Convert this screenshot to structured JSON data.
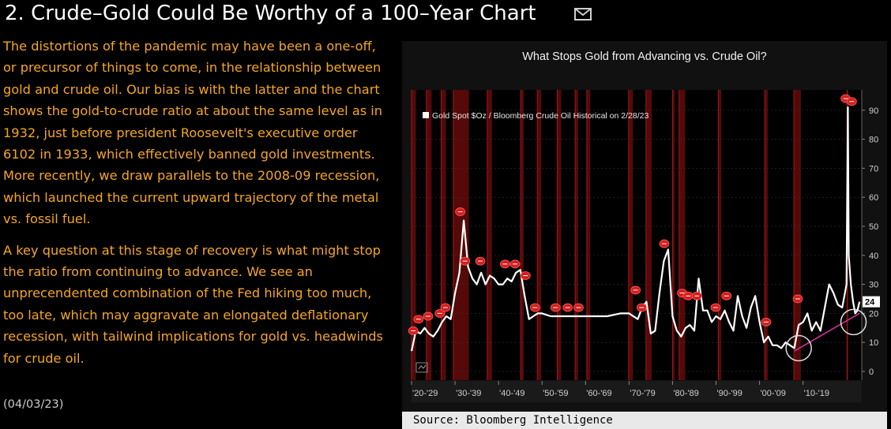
{
  "header": {
    "title": "2. Crude–Gold Could Be Worthy of a 100–Year Chart",
    "mail_icon": "envelope-icon"
  },
  "body": {
    "paragraph1": "The distortions of the pandemic may have been a one-off, or precursor of things to come, in the relationship between gold and crude oil. Our bias is with the latter and the chart shows the gold-to-crude ratio at about the same level as in 1932, just before president Roosevelt's executive order 6102 in 1933, which effectively banned gold investments. More recently, we draw parallels to the 2008-09 recession, which launched the current upward trajectory of the metal vs. fossil fuel.",
    "paragraph2": "A key question at this stage of recovery is what might stop the ratio from continuing to advance. We see an unprecendented combination of the Fed hiking too much, too late, which may aggravate an elongated deflationary recession, with tailwind implications for gold vs. headwinds for crude oil.",
    "date": "(04/03/23)"
  },
  "source": "Source: Bloomberg Intelligence",
  "colors": {
    "text_accent": "#f5a623",
    "recession_band": "#5a0a0a",
    "line": "#ffffff",
    "trend": "#d0309a",
    "marker": "#d51d1d"
  },
  "chart_data": {
    "type": "line",
    "title": "What Stops Gold from Advancing vs. Crude Oil?",
    "legend": "Gold Spot $Oz / Bloomberg Crude Oil Historical on 2/28/23",
    "legend_position": "top-left",
    "x_tick_labels": [
      "'20-'29",
      "'30-'39",
      "'40-'49",
      "'50-'59",
      "'60-'69",
      "'70-'79",
      "'80-'89",
      "'90-'99",
      "'00-'09",
      "'10-'19"
    ],
    "y_ticks": [
      0,
      10,
      20,
      30,
      40,
      50,
      60,
      70,
      80,
      90
    ],
    "ylim": [
      -3,
      97
    ],
    "xlim": [
      1920,
      2023.5
    ],
    "last_value_label": "24",
    "series": [
      {
        "name": "Gold Spot $Oz / Bloomberg Crude Oil Historical on 2/28/23",
        "x": [
          1920,
          1921,
          1922,
          1923,
          1924,
          1925,
          1926,
          1927,
          1928,
          1929,
          1930,
          1931,
          1932,
          1933,
          1934,
          1935,
          1936,
          1937,
          1938,
          1939,
          1940,
          1941,
          1942,
          1943,
          1944,
          1945,
          1946,
          1947,
          1948,
          1949,
          1950,
          1952,
          1955,
          1958,
          1960,
          1962,
          1965,
          1968,
          1970,
          1972,
          1973,
          1974,
          1975,
          1976,
          1977,
          1978,
          1979,
          1980,
          1981,
          1982,
          1983,
          1984,
          1985,
          1986,
          1987,
          1988,
          1989,
          1990,
          1991,
          1992,
          1993,
          1994,
          1995,
          1996,
          1997,
          1998,
          1999,
          2000,
          2001,
          2002,
          2003,
          2004,
          2005,
          2006,
          2007,
          2008,
          2009,
          2010,
          2011,
          2012,
          2013,
          2014,
          2015,
          2016,
          2017,
          2018,
          2019,
          2019.5,
          2020,
          2020.3,
          2020.5,
          2021,
          2021.5,
          2022,
          2022.5,
          2023
        ],
        "values": [
          7,
          14,
          13,
          15,
          13,
          12,
          14,
          17,
          19,
          18,
          27,
          34,
          52,
          36,
          32,
          30,
          34,
          30,
          33,
          32,
          30,
          30,
          32,
          31,
          34,
          35,
          26,
          18,
          19,
          20,
          20,
          19,
          19,
          19,
          19,
          19,
          19,
          20,
          20,
          18,
          22,
          24,
          13,
          14,
          27,
          38,
          42,
          19,
          14,
          12,
          15,
          16,
          14,
          32,
          21,
          21,
          17,
          19,
          18,
          21,
          17,
          14,
          26,
          19,
          15,
          22,
          26,
          17,
          10,
          12,
          9,
          9,
          8,
          10,
          9,
          8,
          16,
          17,
          20,
          14,
          17,
          14,
          22,
          30,
          27,
          23,
          22,
          26,
          30,
          91,
          40,
          30,
          24,
          20,
          21,
          24
        ]
      }
    ],
    "recession_shading": [
      [
        1920,
        1921
      ],
      [
        1923.4,
        1924.6
      ],
      [
        1926.8,
        1927.9
      ],
      [
        1929.6,
        1933.2
      ],
      [
        1937.4,
        1938.5
      ],
      [
        1945.1,
        1945.8
      ],
      [
        1948.9,
        1949.8
      ],
      [
        1953.5,
        1954.4
      ],
      [
        1957.6,
        1958.3
      ],
      [
        1960.3,
        1961.1
      ],
      [
        1969.9,
        1970.9
      ],
      [
        1973.9,
        1975.2
      ],
      [
        1980,
        1980.5
      ],
      [
        1981.5,
        1982.9
      ],
      [
        1990.5,
        1991.2
      ],
      [
        2001.2,
        2001.9
      ],
      [
        2007.9,
        2009.5
      ],
      [
        2020.1,
        2020.4
      ]
    ],
    "trendline": {
      "x": [
        2008,
        2023
      ],
      "values": [
        7,
        20
      ]
    },
    "circled_points": [
      {
        "x": 2009,
        "value": 8
      },
      {
        "x": 2021.6,
        "value": 17
      }
    ],
    "event_markers": [
      {
        "x": 1920.4,
        "value": 14
      },
      {
        "x": 1921.6,
        "value": 18
      },
      {
        "x": 1923.8,
        "value": 19
      },
      {
        "x": 1926.5,
        "value": 20
      },
      {
        "x": 1927.8,
        "value": 22
      },
      {
        "x": 1931.2,
        "value": 55
      },
      {
        "x": 1932.3,
        "value": 38
      },
      {
        "x": 1935.8,
        "value": 38
      },
      {
        "x": 1941.5,
        "value": 37
      },
      {
        "x": 1943.8,
        "value": 37
      },
      {
        "x": 1946.2,
        "value": 33
      },
      {
        "x": 1948.4,
        "value": 22
      },
      {
        "x": 1953.1,
        "value": 22
      },
      {
        "x": 1955.9,
        "value": 22
      },
      {
        "x": 1958.4,
        "value": 22
      },
      {
        "x": 1971.5,
        "value": 28
      },
      {
        "x": 1972.9,
        "value": 22
      },
      {
        "x": 1978.1,
        "value": 44
      },
      {
        "x": 1982.2,
        "value": 27
      },
      {
        "x": 1983.6,
        "value": 26
      },
      {
        "x": 1985.6,
        "value": 26
      },
      {
        "x": 1989.9,
        "value": 22
      },
      {
        "x": 1992.4,
        "value": 26
      },
      {
        "x": 2001.5,
        "value": 17
      },
      {
        "x": 2008.8,
        "value": 25
      },
      {
        "x": 2019.8,
        "value": 94
      },
      {
        "x": 2021.2,
        "value": 93
      }
    ]
  }
}
